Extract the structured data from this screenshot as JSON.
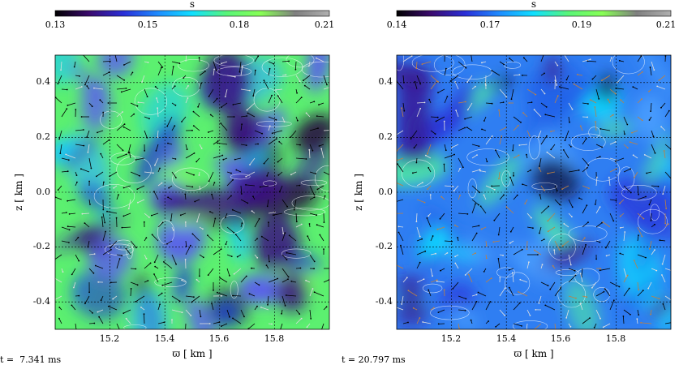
{
  "chart_data": [
    {
      "type": "heatmap",
      "colorbar": {
        "label": "s",
        "ticks": [
          "0.13",
          "0.15",
          "0.18",
          "0.21"
        ],
        "range": [
          0.13,
          0.21
        ],
        "colors": [
          "#000000",
          "#3b0a6e",
          "#2a2fd8",
          "#1e8cff",
          "#10e0ff",
          "#58f578",
          "#88ff55",
          "#7f7f7f",
          "#b0b0b0"
        ]
      },
      "xlabel": "ϖ [ km ]",
      "ylabel": "z [ km ]",
      "xticks": [
        "15.2",
        "15.4",
        "15.6",
        "15.8"
      ],
      "yticks": [
        "0.4",
        "0.2",
        "0.0",
        "-0.2",
        "-0.4"
      ],
      "xlim": [
        15.0,
        16.0
      ],
      "ylim": [
        -0.5,
        0.5
      ],
      "time_label": "t =  7.341 ms",
      "dominant": "green"
    },
    {
      "type": "heatmap",
      "colorbar": {
        "label": "s",
        "ticks": [
          "0.14",
          "0.17",
          "0.19",
          "0.21"
        ],
        "range": [
          0.14,
          0.21
        ],
        "colors": [
          "#000000",
          "#3b0a6e",
          "#2a2fd8",
          "#1e8cff",
          "#10e0ff",
          "#58f578",
          "#88ff55",
          "#7f7f7f",
          "#b0b0b0"
        ]
      },
      "xlabel": "ϖ [ km ]",
      "ylabel": "z [ km ]",
      "xticks": [
        "15.2",
        "15.4",
        "15.6",
        "15.8"
      ],
      "yticks": [
        "0.4",
        "0.2",
        "0.0",
        "-0.2",
        "-0.4"
      ],
      "xlim": [
        15.0,
        16.0
      ],
      "ylim": [
        -0.5,
        0.5
      ],
      "time_label": "t = 20.797 ms",
      "dominant": "blue"
    }
  ]
}
